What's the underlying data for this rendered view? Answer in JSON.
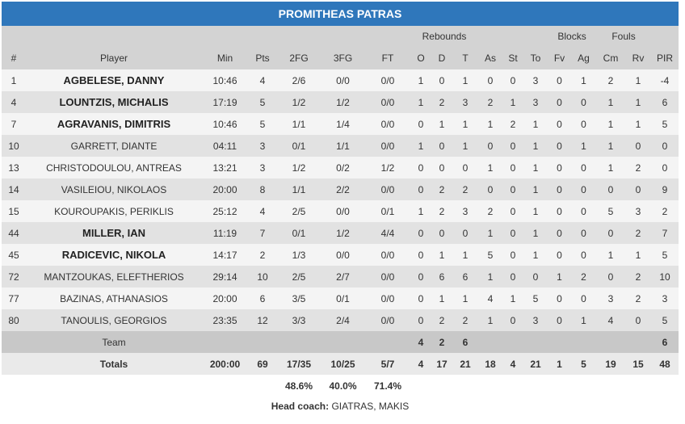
{
  "team_name": "PROMITHEAS PATRAS",
  "group_headers": {
    "rebounds": "Rebounds",
    "blocks": "Blocks",
    "fouls": "Fouls"
  },
  "columns": [
    "#",
    "Player",
    "Min",
    "Pts",
    "2FG",
    "3FG",
    "FT",
    "O",
    "D",
    "T",
    "As",
    "St",
    "To",
    "Fv",
    "Ag",
    "Cm",
    "Rv",
    "PIR"
  ],
  "players": [
    {
      "num": "1",
      "name": "AGBELESE, DANNY",
      "bold": true,
      "stats": [
        "10:46",
        "4",
        "2/6",
        "0/0",
        "0/0",
        "1",
        "0",
        "1",
        "0",
        "0",
        "3",
        "0",
        "1",
        "2",
        "1",
        "-4"
      ]
    },
    {
      "num": "4",
      "name": "LOUNTZIS, MICHALIS",
      "bold": true,
      "stats": [
        "17:19",
        "5",
        "1/2",
        "1/2",
        "0/0",
        "1",
        "2",
        "3",
        "2",
        "1",
        "3",
        "0",
        "0",
        "1",
        "1",
        "6"
      ]
    },
    {
      "num": "7",
      "name": "AGRAVANIS, DIMITRIS",
      "bold": true,
      "stats": [
        "10:46",
        "5",
        "1/1",
        "1/4",
        "0/0",
        "0",
        "1",
        "1",
        "1",
        "2",
        "1",
        "0",
        "0",
        "1",
        "1",
        "5"
      ]
    },
    {
      "num": "10",
      "name": "GARRETT, DIANTE",
      "bold": false,
      "stats": [
        "04:11",
        "3",
        "0/1",
        "1/1",
        "0/0",
        "1",
        "0",
        "1",
        "0",
        "0",
        "1",
        "0",
        "1",
        "1",
        "0",
        "0"
      ]
    },
    {
      "num": "13",
      "name": "CHRISTODOULOU, ANTREAS",
      "bold": false,
      "stats": [
        "13:21",
        "3",
        "1/2",
        "0/2",
        "1/2",
        "0",
        "0",
        "0",
        "1",
        "0",
        "1",
        "0",
        "0",
        "1",
        "2",
        "0"
      ]
    },
    {
      "num": "14",
      "name": "VASILEIOU, NIKOLAOS",
      "bold": false,
      "stats": [
        "20:00",
        "8",
        "1/1",
        "2/2",
        "0/0",
        "0",
        "2",
        "2",
        "0",
        "0",
        "1",
        "0",
        "0",
        "0",
        "0",
        "9"
      ]
    },
    {
      "num": "15",
      "name": "KOUROUPAKIS, PERIKLIS",
      "bold": false,
      "stats": [
        "25:12",
        "4",
        "2/5",
        "0/0",
        "0/1",
        "1",
        "2",
        "3",
        "2",
        "0",
        "1",
        "0",
        "0",
        "5",
        "3",
        "2"
      ]
    },
    {
      "num": "44",
      "name": "MILLER, IAN",
      "bold": true,
      "stats": [
        "11:19",
        "7",
        "0/1",
        "1/2",
        "4/4",
        "0",
        "0",
        "0",
        "1",
        "0",
        "1",
        "0",
        "0",
        "0",
        "2",
        "7"
      ]
    },
    {
      "num": "45",
      "name": "RADICEVIC, NIKOLA",
      "bold": true,
      "stats": [
        "14:17",
        "2",
        "1/3",
        "0/0",
        "0/0",
        "0",
        "1",
        "1",
        "5",
        "0",
        "1",
        "0",
        "0",
        "1",
        "1",
        "5"
      ]
    },
    {
      "num": "72",
      "name": "MANTZOUKAS, ELEFTHERIOS",
      "bold": false,
      "stats": [
        "29:14",
        "10",
        "2/5",
        "2/7",
        "0/0",
        "0",
        "6",
        "6",
        "1",
        "0",
        "0",
        "1",
        "2",
        "0",
        "2",
        "10"
      ]
    },
    {
      "num": "77",
      "name": "BAZINAS, ATHANASIOS",
      "bold": false,
      "stats": [
        "20:00",
        "6",
        "3/5",
        "0/1",
        "0/0",
        "0",
        "1",
        "1",
        "4",
        "1",
        "5",
        "0",
        "0",
        "3",
        "2",
        "3"
      ]
    },
    {
      "num": "80",
      "name": "TANOULIS, GEORGIOS",
      "bold": false,
      "stats": [
        "23:35",
        "12",
        "3/3",
        "2/4",
        "0/0",
        "0",
        "2",
        "2",
        "1",
        "0",
        "3",
        "0",
        "1",
        "4",
        "0",
        "5"
      ]
    }
  ],
  "team_row": {
    "label": "Team",
    "stats": [
      "",
      "",
      "",
      "",
      "",
      "4",
      "2",
      "6",
      "",
      "",
      "",
      "",
      "",
      "",
      "",
      "6"
    ]
  },
  "totals_row": {
    "label": "Totals",
    "stats": [
      "200:00",
      "69",
      "17/35",
      "10/25",
      "5/7",
      "4",
      "17",
      "21",
      "18",
      "4",
      "21",
      "1",
      "5",
      "19",
      "15",
      "48"
    ]
  },
  "percentages": {
    "fg2": "48.6%",
    "fg3": "40.0%",
    "ft": "71.4%"
  },
  "coach": {
    "label": "Head coach:",
    "name": "GIATRAS, MAKIS"
  },
  "colors": {
    "header_blue": "#2f77bb",
    "header_gray": "#d3d3d3",
    "row_light": "#f4f4f4",
    "row_dark": "#e2e2e2"
  }
}
